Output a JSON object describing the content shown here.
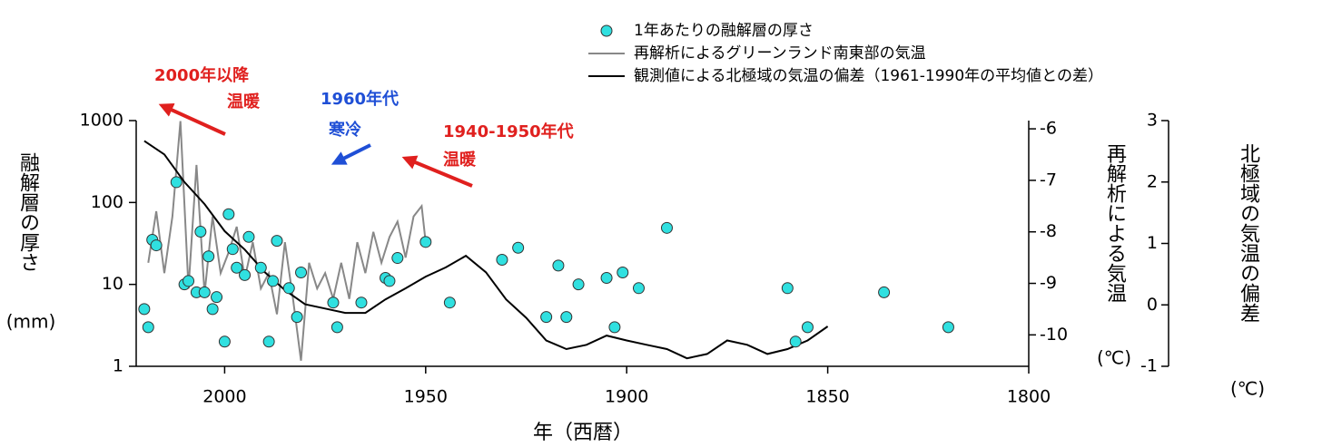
{
  "chart_data": {
    "type": "combo",
    "xlabel": "年（西暦）",
    "ylabel": "融解層の厚さ",
    "ylabel_unit": "(mm)",
    "y2label": "再解析による気温",
    "y2label_unit": "(℃)",
    "y3label": "北極域の気温の偏差",
    "y3label_unit": "(℃)",
    "xlim": [
      2022,
      1800
    ],
    "xticks": [
      2000,
      1950,
      1900,
      1850,
      1800
    ],
    "ylim": [
      1,
      1000
    ],
    "yticks": [
      1,
      10,
      100,
      1000
    ],
    "log_y": true,
    "y2lim": [
      -10.61,
      -5.84
    ],
    "y2ticks": [
      -6,
      -7,
      -8,
      -9,
      -10
    ],
    "y3lim": [
      -1,
      3
    ],
    "y3ticks": [
      -1,
      0,
      1,
      2,
      3
    ],
    "annotations": [
      {
        "lines": [
          "2000年以降",
          "温暖"
        ],
        "color": "#e0201e"
      },
      {
        "lines": [
          "1960年代",
          "寒冷"
        ],
        "color": "#1f4fd6"
      },
      {
        "lines": [
          "1940-1950年代",
          "温暖"
        ],
        "color": "#e0201e"
      }
    ],
    "series": [
      {
        "name": "1年あたりの融解層の厚さ",
        "type": "scatter",
        "color": "#30e0e0",
        "x": [
          2020,
          2019,
          2018,
          2017,
          2012,
          2010,
          2009,
          2007,
          2006,
          2005,
          2004,
          2003,
          2002,
          2000,
          1999,
          1998,
          1997,
          1995,
          1994,
          1991,
          1989,
          1988,
          1987,
          1984,
          1982,
          1981,
          1973,
          1972,
          1966,
          1960,
          1959,
          1957,
          1950,
          1944,
          1931,
          1927,
          1920,
          1917,
          1915,
          1912,
          1905,
          1903,
          1901,
          1897,
          1890,
          1860,
          1858,
          1855,
          1836,
          1820
        ],
        "values": [
          5,
          3,
          35,
          30,
          177,
          10,
          11,
          8,
          44,
          8,
          22,
          5,
          7,
          2,
          72,
          27,
          16,
          13,
          38,
          16,
          2,
          11,
          34,
          9,
          4,
          14,
          6,
          3,
          6,
          12,
          11,
          21,
          33,
          6,
          20,
          28,
          4,
          17,
          4,
          10,
          12,
          3,
          14,
          9,
          49,
          9,
          2,
          3,
          8,
          3
        ]
      },
      {
        "name": "再解析によるグリーンランド南東部の気温",
        "type": "line",
        "axis": "y2",
        "color": "#888888",
        "x": [
          2019,
          2017,
          2015,
          2013,
          2011,
          2009,
          2007,
          2005,
          2003,
          2001,
          1999,
          1997,
          1995,
          1993,
          1991,
          1989,
          1987,
          1985,
          1983,
          1981,
          1979,
          1977,
          1975,
          1973,
          1971,
          1969,
          1967,
          1965,
          1963,
          1961,
          1959,
          1957,
          1955,
          1953,
          1951,
          1950
        ],
        "values": [
          -8.6,
          -7.6,
          -8.8,
          -7.7,
          -5.85,
          -9.1,
          -6.7,
          -9.2,
          -7.7,
          -8.8,
          -8.4,
          -7.9,
          -8.9,
          -8.2,
          -9.1,
          -8.8,
          -9.6,
          -8.2,
          -9.3,
          -10.5,
          -8.6,
          -9.1,
          -8.8,
          -9.3,
          -8.6,
          -9.3,
          -8.2,
          -8.8,
          -8.0,
          -8.6,
          -8.1,
          -7.8,
          -8.5,
          -7.7,
          -7.5,
          -8.2
        ]
      },
      {
        "name": "観測値による北極域の気温の偏差（1961-1990年の平均値との差）",
        "type": "line",
        "axis": "y3",
        "color": "#000000",
        "x": [
          2020,
          2015,
          2010,
          2005,
          2000,
          1995,
          1990,
          1985,
          1980,
          1975,
          1970,
          1965,
          1960,
          1955,
          1950,
          1945,
          1940,
          1935,
          1930,
          1925,
          1920,
          1915,
          1910,
          1905,
          1900,
          1895,
          1890,
          1885,
          1880,
          1875,
          1870,
          1865,
          1860,
          1855,
          1850
        ],
        "values": [
          2.67,
          2.45,
          2.0,
          1.64,
          1.2,
          0.9,
          0.53,
          0.24,
          0.01,
          -0.06,
          -0.13,
          -0.13,
          0.09,
          0.27,
          0.46,
          0.61,
          0.8,
          0.53,
          0.09,
          -0.21,
          -0.58,
          -0.72,
          -0.65,
          -0.5,
          -0.58,
          -0.65,
          -0.72,
          -0.87,
          -0.8,
          -0.58,
          -0.65,
          -0.8,
          -0.72,
          -0.58,
          -0.35
        ]
      }
    ]
  }
}
